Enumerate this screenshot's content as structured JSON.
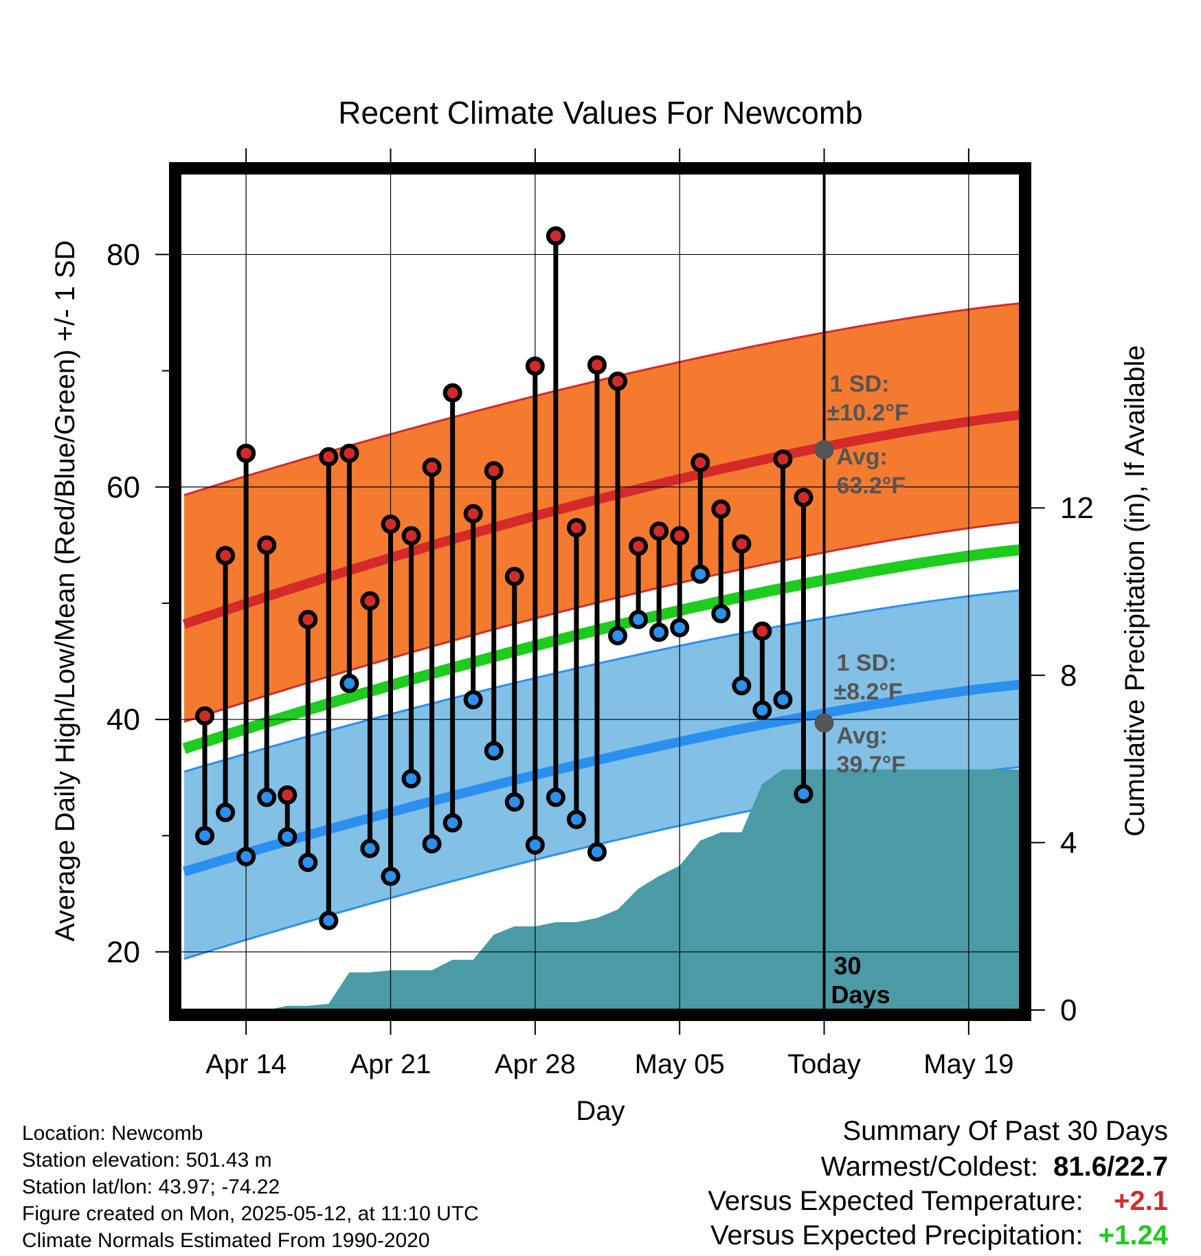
{
  "chart_data": {
    "type": "line",
    "title": "Recent Climate Values For Newcomb",
    "xlabel": "Day",
    "ylabel": "Average Daily High/Low/Mean (Red/Blue/Green) +/- 1 SD",
    "y2label": "Cumulative Precipitation (in), If Available",
    "ylim": [
      15,
      87
    ],
    "y2lim": [
      0,
      20
    ],
    "yticks": [
      20,
      40,
      60,
      80
    ],
    "y2ticks": [
      0,
      4,
      8,
      12
    ],
    "grid": true,
    "xticks": [
      {
        "day": 14,
        "label": "Apr 14"
      },
      {
        "day": 21,
        "label": "Apr 21"
      },
      {
        "day": 28,
        "label": "Apr 28"
      },
      {
        "day": 35,
        "label": "May 05"
      },
      {
        "day": 42,
        "label": "Today"
      },
      {
        "day": 49,
        "label": "May 19"
      }
    ],
    "xlim": [
      10.8,
      51.5
    ],
    "today_day": 42,
    "days": [
      12,
      13,
      14,
      15,
      16,
      17,
      18,
      19,
      20,
      21,
      22,
      23,
      24,
      25,
      26,
      27,
      28,
      29,
      30,
      31,
      32,
      33,
      34,
      35,
      36,
      37,
      38,
      39,
      40,
      41
    ],
    "highs": [
      40.3,
      54.1,
      62.9,
      55.0,
      33.5,
      48.6,
      62.6,
      62.9,
      50.2,
      56.8,
      55.8,
      61.7,
      68.1,
      57.7,
      61.4,
      52.3,
      70.4,
      81.6,
      56.5,
      70.5,
      69.1,
      54.9,
      56.2,
      55.8,
      62.1,
      58.1,
      55.1,
      47.6,
      62.4,
      59.1
    ],
    "lows": [
      30.0,
      32.0,
      28.2,
      33.3,
      29.9,
      27.7,
      22.7,
      43.1,
      28.9,
      26.5,
      34.9,
      29.3,
      31.1,
      41.7,
      37.3,
      32.9,
      29.2,
      33.3,
      31.4,
      28.6,
      47.2,
      48.6,
      47.5,
      47.9,
      52.5,
      49.1,
      42.9,
      40.8,
      41.7,
      33.6
    ],
    "normals": {
      "days": [
        11,
        51.5
      ],
      "high_avg": [
        48.2,
        66.2
      ],
      "high_sd_upper": [
        59.3,
        75.8
      ],
      "high_sd_lower": [
        39.8,
        57.0
      ],
      "mean_avg": [
        37.5,
        54.6
      ],
      "low_avg": [
        26.9,
        43.0
      ],
      "low_sd_upper": [
        35.5,
        51.1
      ],
      "low_sd_lower": [
        19.4,
        35.9
      ]
    },
    "precip": {
      "days": [
        11,
        12,
        13,
        14,
        15,
        16,
        17,
        18,
        19,
        20,
        21,
        22,
        23,
        24,
        25,
        26,
        27,
        28,
        29,
        30,
        31,
        32,
        33,
        34,
        35,
        36,
        37,
        38,
        39,
        40,
        41,
        42,
        51.5
      ],
      "values": [
        0,
        0,
        0,
        0,
        0,
        0.1,
        0.1,
        0.15,
        0.9,
        0.9,
        0.95,
        0.95,
        0.95,
        1.2,
        1.2,
        1.8,
        2.0,
        2.0,
        2.1,
        2.1,
        2.2,
        2.4,
        2.9,
        3.2,
        3.45,
        4.05,
        4.25,
        4.25,
        5.4,
        5.75,
        5.75,
        5.75,
        5.75
      ]
    },
    "annotations": {
      "high_sd_line1": "1 SD:",
      "high_sd_line2": "±10.2°F",
      "high_avg_line1": "Avg:",
      "high_avg_line2": "63.2°F",
      "high_avg_value": 63.2,
      "low_sd_line1": "1 SD:",
      "low_sd_line2": "±8.2°F",
      "low_avg_line1": "Avg:",
      "low_avg_line2": "39.7°F",
      "low_avg_value": 39.7,
      "window_line1": "30",
      "window_line2": "Days"
    },
    "colors": {
      "high_band": "#F47A30",
      "high_line": "#D42A2A",
      "low_band": "#82C0E6",
      "low_line": "#2B8FF0",
      "mean_line": "#1DCC1D",
      "precip": "#4A9BA5",
      "high_dot": "#D22A2A",
      "low_dot": "#2B90EE",
      "annotation": "#555555"
    }
  },
  "metadata": {
    "location": "Location: Newcomb",
    "elevation": "Station elevation: 501.43 m",
    "latlon": "Station lat/lon: 43.97; -74.22",
    "created": "Figure created on Mon, 2025-05-12, at 11:10 UTC",
    "normals": "Climate Normals Estimated From 1990-2020"
  },
  "summary": {
    "title": "Summary Of Past 30 Days",
    "warm_cold_label": "Warmest/Coldest:",
    "warm_cold_value": "81.6/22.7",
    "temp_label": "Versus Expected Temperature:",
    "temp_value": "+2.1",
    "temp_color": "#D42A2A",
    "precip_label": "Versus Expected Precipitation:",
    "precip_value": "+1.24",
    "precip_color": "#1DCC1D"
  }
}
